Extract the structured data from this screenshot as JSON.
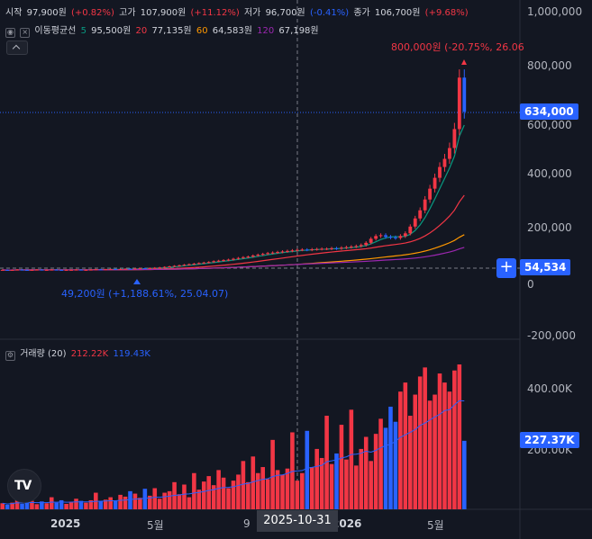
{
  "ohlc": {
    "open_label": "시작",
    "open_val": "97,900원",
    "open_chg": "(+0.82%)",
    "high_label": "고가",
    "high_val": "107,900원",
    "high_chg": "(+11.12%)",
    "low_label": "저가",
    "low_val": "96,700원",
    "low_chg": "(-0.41%)",
    "close_label": "종가",
    "close_val": "106,700원",
    "close_chg": "(+9.68%)"
  },
  "ma_legend": {
    "title": "이동평균선",
    "p5": "5",
    "v5": "95,500원",
    "p20": "20",
    "v20": "77,135원",
    "p60": "60",
    "v60": "64,583원",
    "p120": "120",
    "v120": "67,198원",
    "colors": {
      "p5": "#089981",
      "p20": "#f23645",
      "p60": "#ff9800",
      "p120": "#9c27b0"
    }
  },
  "volume_legend": {
    "title": "거래량 (20)",
    "v1": "212.22K",
    "v2": "119.43K"
  },
  "price_axis": {
    "ticks": [
      "1,000,000",
      "800,000",
      "400,000",
      "200,000",
      "0",
      "-200,000"
    ],
    "ticks_partial": "600,000",
    "current_price": "634,000",
    "crosshair_price": "54,534"
  },
  "volume_axis": {
    "ticks": [
      "400.00K",
      "200.00K"
    ],
    "current_volume": "227.37K"
  },
  "time_axis": {
    "labels": [
      "2025",
      "5월",
      "9",
      "2026",
      "5월"
    ],
    "crosshair_date": "2025-10-31"
  },
  "annotations": {
    "high": "800,000원 (-20.75%, 26.06",
    "low": "49,200원 (+1,188.61%, 25.04.07)"
  },
  "logo_text": "TV",
  "colors": {
    "up": "#f23645",
    "down": "#2962ff",
    "accent": "#2962ff",
    "bg": "#131722"
  },
  "chart_data": {
    "type": "candlestick",
    "price_range": [
      -200000,
      1000000
    ],
    "volume_range": [
      0,
      480000
    ],
    "closes": [
      50,
      49,
      50,
      51,
      50,
      49,
      50,
      51,
      50,
      50,
      51,
      50,
      49,
      50,
      50,
      51,
      50,
      50,
      51,
      52,
      51,
      52,
      53,
      52,
      53,
      54,
      53,
      55,
      56,
      55,
      57,
      58,
      59,
      61,
      63,
      65,
      67,
      69,
      71,
      73,
      75,
      77,
      79,
      82,
      84,
      86,
      88,
      91,
      94,
      97,
      99,
      103,
      106,
      109,
      112,
      114,
      116,
      118,
      120,
      122,
      124,
      125,
      124,
      126,
      127,
      128,
      128,
      130,
      129,
      132,
      134,
      136,
      138,
      142,
      150,
      165,
      175,
      178,
      172,
      170,
      168,
      175,
      185,
      210,
      240,
      270,
      310,
      350,
      390,
      430,
      460,
      500,
      570,
      760,
      634
    ],
    "volumes": [
      20,
      15,
      22,
      30,
      18,
      25,
      28,
      17,
      26,
      20,
      40,
      22,
      30,
      18,
      25,
      35,
      28,
      22,
      30,
      55,
      28,
      32,
      40,
      28,
      48,
      42,
      60,
      52,
      38,
      68,
      45,
      70,
      35,
      55,
      60,
      90,
      50,
      82,
      40,
      120,
      65,
      92,
      110,
      80,
      130,
      105,
      70,
      95,
      115,
      160,
      90,
      175,
      120,
      140,
      100,
      230,
      130,
      115,
      135,
      255,
      95,
      120,
      260,
      140,
      200,
      170,
      310,
      150,
      185,
      280,
      165,
      330,
      145,
      200,
      240,
      160,
      250,
      300,
      270,
      340,
      290,
      390,
      420,
      310,
      380,
      440,
      470,
      360,
      380,
      450,
      420,
      390,
      460,
      480,
      227
    ]
  }
}
